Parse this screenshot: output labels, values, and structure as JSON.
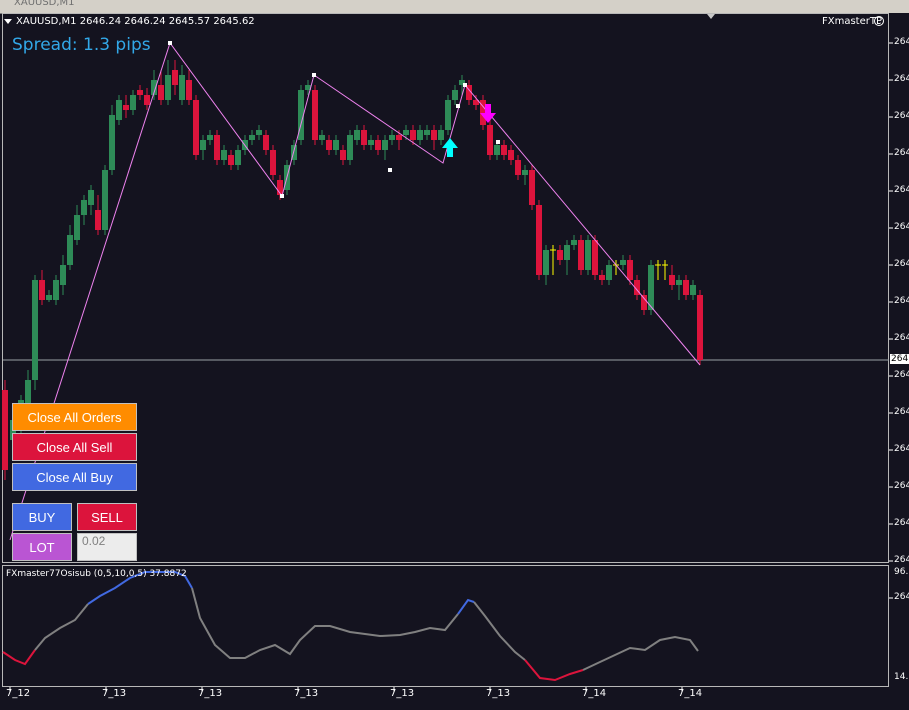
{
  "window": {
    "title": "XAUUSD,M1"
  },
  "chart": {
    "header": "XAUUSD,M1  2646.24 2646.24 2645.57 2645.62",
    "spread_text": "Spread: 1.3 pips",
    "brand": "FXmasterTP",
    "colors": {
      "bull": "#2e8b57",
      "bear": "#dc143c",
      "doji": "#ffff00",
      "zigzag": "#ee82ee",
      "up_arrow": "#00ffff",
      "down_arrow": "#ff00ff",
      "spread": "#32a8e8"
    }
  },
  "buttons": {
    "close_all_orders": "Close All Orders",
    "close_all_sell": "Close All Sell",
    "close_all_buy": "Close All Buy",
    "buy": "BUY",
    "sell": "SELL",
    "lot": "LOT",
    "lot_value": "0.02"
  },
  "indicator": {
    "label": "FXmaster77Osisub (0,5,10,0,5) 37.8872",
    "axis_top": "96.",
    "axis_bottom": "14.",
    "colors": {
      "normal": "#808080",
      "high": "#4169e1",
      "low": "#dc143c"
    }
  },
  "price_axis": {
    "labels": [
      "264",
      "264",
      "264",
      "264",
      "264",
      "264",
      "264",
      "264",
      "264",
      "264",
      "264",
      "264",
      "264",
      "264",
      "264",
      "264"
    ],
    "current": "264"
  },
  "time_axis": {
    "labels": [
      "7_12",
      "7_13",
      "7_13",
      "7_13",
      "7_13",
      "7_13",
      "7_14",
      "7_14"
    ]
  }
}
